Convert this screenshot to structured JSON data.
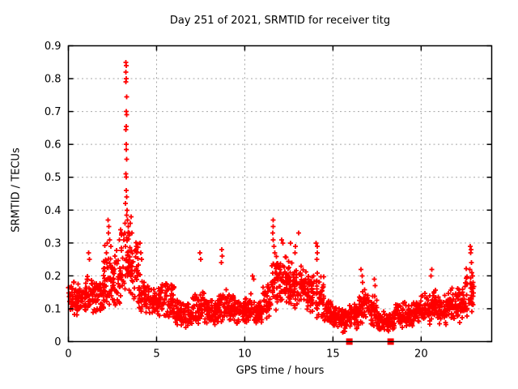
{
  "title": "Day 251 of 2021, SRMTID for receiver titg",
  "chart_data": {
    "type": "scatter",
    "title": "Day 251 of 2021, SRMTID for receiver titg",
    "xlabel": "GPS time / hours",
    "ylabel": "SRMTID / TECUs",
    "xlim": [
      0,
      24
    ],
    "ylim": [
      0,
      0.9
    ],
    "xticks": [
      0,
      5,
      10,
      15,
      20
    ],
    "yticks": [
      0,
      0.1,
      0.2,
      0.3,
      0.4,
      0.5,
      0.6,
      0.7,
      0.8,
      0.9
    ],
    "grid": true,
    "legend": "none",
    "marker": "plus",
    "marker_color": "#ff0000",
    "grid_color": "#a6a6a6",
    "border_color": "#000000",
    "data_end_hour": 23.0,
    "series_envelope_bins": [
      [
        0.0,
        0.5,
        0.13,
        0.05,
        42
      ],
      [
        0.5,
        1.0,
        0.13,
        0.05,
        42
      ],
      [
        1.0,
        1.5,
        0.15,
        0.06,
        42
      ],
      [
        1.5,
        2.0,
        0.14,
        0.05,
        42
      ],
      [
        2.0,
        2.5,
        0.2,
        0.09,
        46
      ],
      [
        2.5,
        3.0,
        0.19,
        0.08,
        46
      ],
      [
        3.0,
        3.5,
        0.24,
        0.1,
        48
      ],
      [
        3.5,
        4.0,
        0.22,
        0.1,
        44
      ],
      [
        4.0,
        4.5,
        0.14,
        0.06,
        42
      ],
      [
        4.5,
        5.0,
        0.12,
        0.04,
        42
      ],
      [
        5.0,
        5.5,
        0.13,
        0.05,
        42
      ],
      [
        5.5,
        6.0,
        0.13,
        0.06,
        42
      ],
      [
        6.0,
        6.5,
        0.09,
        0.04,
        42
      ],
      [
        6.5,
        7.0,
        0.08,
        0.04,
        42
      ],
      [
        7.0,
        7.5,
        0.1,
        0.05,
        42
      ],
      [
        7.5,
        8.0,
        0.1,
        0.05,
        42
      ],
      [
        8.0,
        8.5,
        0.09,
        0.04,
        42
      ],
      [
        8.5,
        9.0,
        0.11,
        0.05,
        42
      ],
      [
        9.0,
        9.5,
        0.1,
        0.04,
        42
      ],
      [
        9.5,
        10.0,
        0.09,
        0.04,
        42
      ],
      [
        10.0,
        10.5,
        0.1,
        0.05,
        42
      ],
      [
        10.5,
        11.0,
        0.09,
        0.04,
        42
      ],
      [
        11.0,
        11.5,
        0.12,
        0.05,
        44
      ],
      [
        11.5,
        12.0,
        0.18,
        0.08,
        48
      ],
      [
        12.0,
        12.5,
        0.19,
        0.08,
        48
      ],
      [
        12.5,
        13.0,
        0.17,
        0.07,
        48
      ],
      [
        13.0,
        13.5,
        0.17,
        0.07,
        44
      ],
      [
        13.5,
        14.0,
        0.15,
        0.06,
        44
      ],
      [
        14.0,
        14.5,
        0.14,
        0.07,
        44
      ],
      [
        14.5,
        15.0,
        0.09,
        0.04,
        42
      ],
      [
        15.0,
        15.5,
        0.07,
        0.03,
        42
      ],
      [
        15.5,
        16.0,
        0.07,
        0.04,
        42
      ],
      [
        16.0,
        16.5,
        0.08,
        0.04,
        42
      ],
      [
        16.5,
        17.0,
        0.11,
        0.05,
        42
      ],
      [
        17.0,
        17.5,
        0.09,
        0.05,
        42
      ],
      [
        17.5,
        18.0,
        0.06,
        0.03,
        42
      ],
      [
        18.0,
        18.5,
        0.06,
        0.03,
        42
      ],
      [
        18.5,
        19.0,
        0.08,
        0.04,
        42
      ],
      [
        19.0,
        19.5,
        0.08,
        0.04,
        42
      ],
      [
        19.5,
        20.0,
        0.09,
        0.04,
        42
      ],
      [
        20.0,
        20.5,
        0.1,
        0.05,
        42
      ],
      [
        20.5,
        21.0,
        0.11,
        0.05,
        42
      ],
      [
        21.0,
        21.5,
        0.1,
        0.05,
        42
      ],
      [
        21.5,
        22.0,
        0.11,
        0.05,
        42
      ],
      [
        22.0,
        22.5,
        0.11,
        0.06,
        42
      ],
      [
        22.5,
        23.0,
        0.14,
        0.08,
        44
      ]
    ],
    "outlier_points": [
      [
        3.25,
        0.85
      ],
      [
        3.27,
        0.84
      ],
      [
        3.25,
        0.82
      ],
      [
        3.28,
        0.8
      ],
      [
        3.26,
        0.79
      ],
      [
        3.3,
        0.745
      ],
      [
        3.27,
        0.7
      ],
      [
        3.3,
        0.69
      ],
      [
        3.28,
        0.655
      ],
      [
        3.26,
        0.645
      ],
      [
        3.29,
        0.6
      ],
      [
        3.27,
        0.585
      ],
      [
        3.3,
        0.555
      ],
      [
        3.26,
        0.51
      ],
      [
        3.29,
        0.5
      ],
      [
        3.27,
        0.46
      ],
      [
        3.31,
        0.44
      ],
      [
        3.24,
        0.42
      ],
      [
        3.33,
        0.4
      ],
      [
        3.3,
        0.385
      ],
      [
        3.35,
        0.37
      ],
      [
        3.22,
        0.36
      ],
      [
        3.4,
        0.35
      ],
      [
        3.45,
        0.33
      ],
      [
        3.5,
        0.36
      ],
      [
        3.55,
        0.38
      ],
      [
        3.6,
        0.33
      ],
      [
        3.15,
        0.31
      ],
      [
        3.2,
        0.33
      ],
      [
        2.25,
        0.37
      ],
      [
        2.3,
        0.35
      ],
      [
        2.28,
        0.33
      ],
      [
        2.35,
        0.31
      ],
      [
        2.2,
        0.3
      ],
      [
        2.4,
        0.29
      ],
      [
        2.95,
        0.34
      ],
      [
        2.9,
        0.31
      ],
      [
        3.0,
        0.33
      ],
      [
        1.15,
        0.27
      ],
      [
        1.2,
        0.25
      ],
      [
        4.05,
        0.3
      ],
      [
        4.1,
        0.27
      ],
      [
        4.15,
        0.25
      ],
      [
        7.45,
        0.27
      ],
      [
        7.5,
        0.25
      ],
      [
        8.7,
        0.28
      ],
      [
        8.72,
        0.26
      ],
      [
        8.68,
        0.24
      ],
      [
        10.45,
        0.2
      ],
      [
        10.5,
        0.19
      ],
      [
        11.6,
        0.37
      ],
      [
        11.62,
        0.35
      ],
      [
        11.58,
        0.33
      ],
      [
        11.6,
        0.31
      ],
      [
        11.65,
        0.29
      ],
      [
        11.7,
        0.27
      ],
      [
        12.1,
        0.31
      ],
      [
        12.15,
        0.3
      ],
      [
        12.6,
        0.3
      ],
      [
        12.87,
        0.29
      ],
      [
        12.85,
        0.27
      ],
      [
        13.05,
        0.33
      ],
      [
        14.05,
        0.3
      ],
      [
        14.1,
        0.29
      ],
      [
        14.12,
        0.27
      ],
      [
        14.08,
        0.25
      ],
      [
        16.6,
        0.22
      ],
      [
        16.65,
        0.2
      ],
      [
        16.68,
        0.18
      ],
      [
        17.35,
        0.19
      ],
      [
        17.4,
        0.17
      ],
      [
        20.6,
        0.22
      ],
      [
        20.55,
        0.2
      ],
      [
        22.78,
        0.29
      ],
      [
        22.82,
        0.28
      ],
      [
        22.8,
        0.27
      ],
      [
        22.85,
        0.24
      ],
      [
        22.75,
        0.22
      ],
      [
        22.88,
        0.21
      ]
    ],
    "zero_marker_squares_hours": [
      15.93,
      18.27
    ]
  }
}
